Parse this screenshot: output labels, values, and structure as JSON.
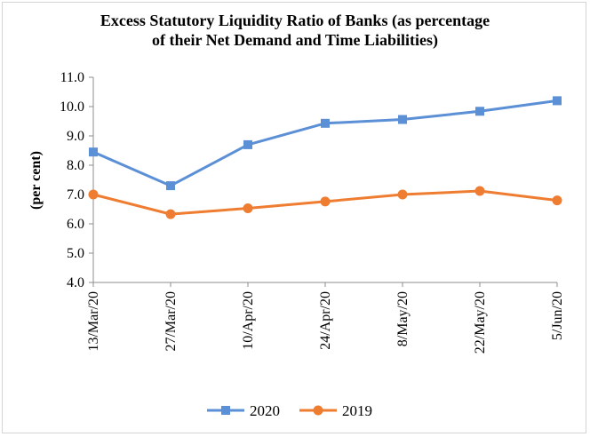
{
  "chart_data": {
    "type": "line",
    "title_line1": "Excess Statutory Liquidity Ratio of Banks (as percentage",
    "title_line2": "of their Net Demand and Time Liabilities)",
    "xlabel": "",
    "ylabel": "(per cent)",
    "categories": [
      "13/Mar/20",
      "27/Mar/20",
      "10/Apr/20",
      "24/Apr/20",
      "8/May/20",
      "22/May/20",
      "5/Jun/20"
    ],
    "ylim": [
      4.0,
      11.0
    ],
    "yticks": [
      "4.0",
      "5.0",
      "6.0",
      "7.0",
      "8.0",
      "9.0",
      "10.0",
      "11.0"
    ],
    "grid": false,
    "legend_position": "bottom",
    "series": [
      {
        "name": "2020",
        "color": "#5b8fd6",
        "marker": "square",
        "values": [
          8.45,
          7.3,
          8.7,
          9.43,
          9.56,
          9.84,
          10.2
        ]
      },
      {
        "name": "2019",
        "color": "#ef7d31",
        "marker": "circle",
        "values": [
          7.0,
          6.33,
          6.53,
          6.76,
          7.0,
          7.12,
          6.8
        ]
      }
    ]
  }
}
